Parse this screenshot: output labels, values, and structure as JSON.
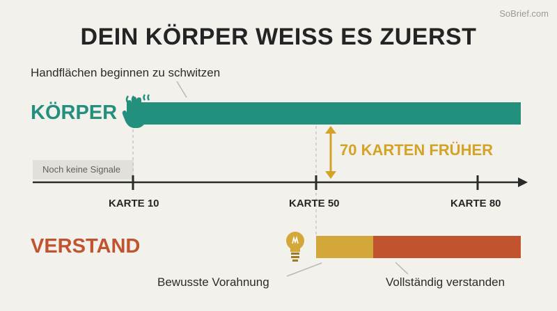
{
  "brand": "SoBrief.com",
  "title": "DEIN KÖRPER WEISS ES ZUERST",
  "body_track": {
    "label": "KÖRPER",
    "note": "Handflächen beginnen zu schwitzen",
    "start_card": 10,
    "color": "#23907e"
  },
  "no_signal": "Noch keine Signale",
  "gap_label": "70 KARTEN FRÜHER",
  "axis": {
    "ticks": [
      {
        "value": 10,
        "label": "KARTE 10"
      },
      {
        "value": 50,
        "label": "KARTE 50"
      },
      {
        "value": 80,
        "label": "KARTE 80"
      }
    ]
  },
  "mind_track": {
    "label": "VERSTAND",
    "start_card": 50,
    "segments": [
      {
        "label": "Bewusste Vorahnung",
        "color": "#d4a73a"
      },
      {
        "label": "Vollständig verstanden",
        "color": "#c1532f"
      }
    ]
  },
  "icons": [
    "hand-icon",
    "lightbulb-icon"
  ],
  "colors": {
    "accent_gold": "#d4a325",
    "axis": "#2a2a2a"
  }
}
